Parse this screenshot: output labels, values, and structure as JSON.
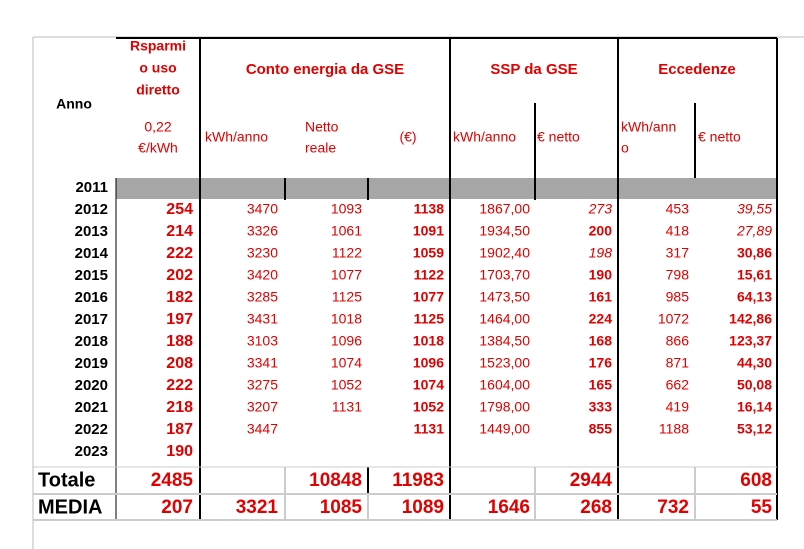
{
  "header": {
    "anno": "Anno",
    "risparmio": [
      "Rsparmi",
      "o uso",
      "diretto"
    ],
    "risparmio_unit": [
      "0,22",
      "€/kWh"
    ],
    "groups": [
      "Conto energia da GSE",
      "SSP da GSE",
      "Eccedenze"
    ],
    "subheaders": [
      [
        "kWh/anno"
      ],
      [
        "Netto",
        "reale"
      ],
      [
        "(€)"
      ],
      [
        "kWh/anno"
      ],
      [
        "€ netto"
      ],
      [
        "kWh/ann",
        "o"
      ],
      [
        "€ netto"
      ]
    ]
  },
  "rows": [
    [
      "2011",
      null,
      null,
      null,
      null,
      null,
      null,
      null,
      null
    ],
    [
      "2012",
      "254",
      "3470",
      "1093",
      "1138",
      "1867,00",
      "273",
      "453",
      "39,55"
    ],
    [
      "2013",
      "214",
      "3326",
      "1061",
      "1091",
      "1934,50",
      "200",
      "418",
      "27,89"
    ],
    [
      "2014",
      "222",
      "3230",
      "1122",
      "1059",
      "1902,40",
      "198",
      "317",
      "30,86"
    ],
    [
      "2015",
      "202",
      "3420",
      "1077",
      "1122",
      "1703,70",
      "190",
      "798",
      "15,61"
    ],
    [
      "2016",
      "182",
      "3285",
      "1125",
      "1077",
      "1473,50",
      "161",
      "985",
      "64,13"
    ],
    [
      "2017",
      "197",
      "3431",
      "1018",
      "1125",
      "1464,00",
      "224",
      "1072",
      "142,86"
    ],
    [
      "2018",
      "188",
      "3103",
      "1096",
      "1018",
      "1384,50",
      "168",
      "866",
      "123,37"
    ],
    [
      "2019",
      "208",
      "3341",
      "1074",
      "1096",
      "1523,00",
      "176",
      "871",
      "44,30"
    ],
    [
      "2020",
      "222",
      "3275",
      "1052",
      "1074",
      "1604,00",
      "165",
      "662",
      "50,08"
    ],
    [
      "2021",
      "218",
      "3207",
      "1131",
      "1052",
      "1798,00",
      "333",
      "419",
      "16,14"
    ],
    [
      "2022",
      "187",
      "3447",
      null,
      "1131",
      "1449,00",
      "855",
      "1188",
      "53,12"
    ],
    [
      "2023",
      "190",
      null,
      null,
      null,
      null,
      null,
      null,
      null
    ]
  ],
  "totals": [
    [
      "Totale",
      "2485",
      null,
      "10848",
      "11983",
      null,
      "2944",
      null,
      "608"
    ],
    [
      "MEDIA",
      "207",
      "3321",
      "1085",
      "1089",
      "1646",
      "268",
      "732",
      "55"
    ]
  ]
}
